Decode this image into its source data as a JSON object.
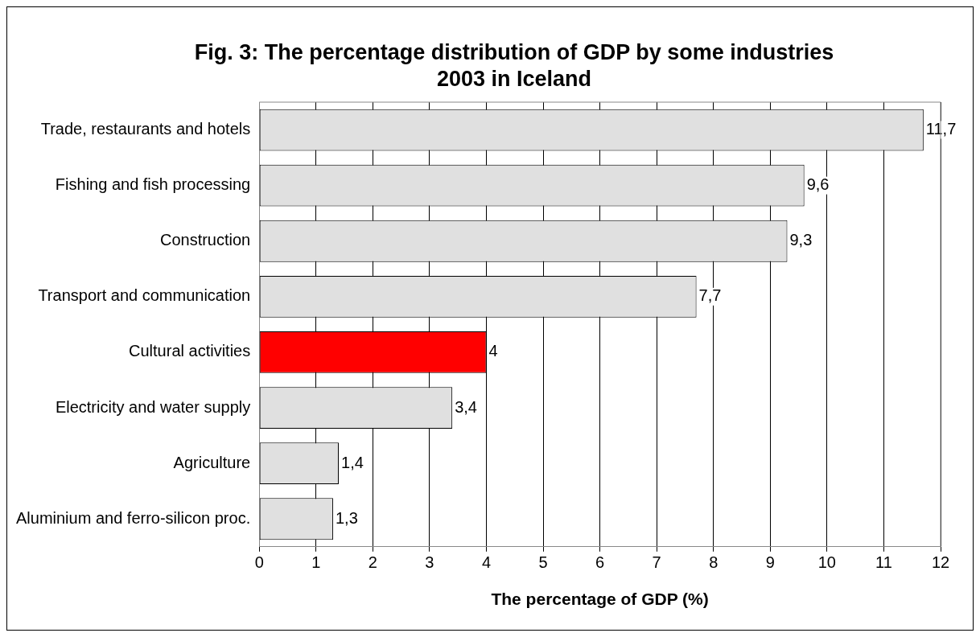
{
  "chart_data": {
    "type": "bar",
    "orientation": "horizontal",
    "title": "Fig. 3: The percentage distribution of GDP by some industries 2003 in Iceland",
    "xlabel": "The percentage of GDP (%)",
    "categories": [
      "Trade, restaurants and hotels",
      "Fishing and fish processing",
      "Construction",
      "Transport and communication",
      "Cultural activities",
      "Electricity and water supply",
      "Agriculture",
      "Aluminium and ferro-silicon proc."
    ],
    "values": [
      11.7,
      9.6,
      9.3,
      7.7,
      4,
      3.4,
      1.4,
      1.3
    ],
    "colors": [
      "#e0e0e0",
      "#e0e0e0",
      "#e0e0e0",
      "#e0e0e0",
      "#ff0000",
      "#e0e0e0",
      "#e0e0e0",
      "#e0e0e0"
    ],
    "value_labels": [
      "11,7",
      "9,6",
      "9,3",
      "7,7",
      "4",
      "3,4",
      "1,4",
      "1,3"
    ],
    "xlim": [
      0,
      12
    ],
    "xticks": [
      0,
      1,
      2,
      3,
      4,
      5,
      6,
      7,
      8,
      9,
      10,
      11,
      12
    ],
    "grid": "x",
    "legend": false
  }
}
